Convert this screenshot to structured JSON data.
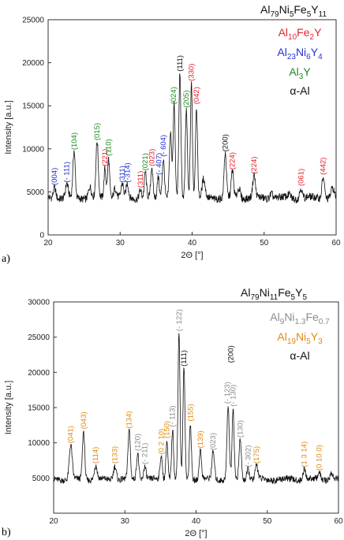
{
  "colors": {
    "red": "#e3232c",
    "blue": "#2433d6",
    "green": "#1f8a1f",
    "black": "#111111",
    "gray": "#8c8c8c",
    "orange": "#e08a16"
  },
  "chart_data": [
    {
      "type": "line",
      "panel_label": "a)",
      "title": "Al79Ni5Fe5Y11",
      "title_parts": [
        {
          "t": "Al"
        },
        {
          "t": "79",
          "sub": true
        },
        {
          "t": "Ni"
        },
        {
          "t": "5",
          "sub": true
        },
        {
          "t": "Fe"
        },
        {
          "t": "5",
          "sub": true
        },
        {
          "t": "Y"
        },
        {
          "t": "11",
          "sub": true
        }
      ],
      "xlabel": "2Θ [°]",
      "ylabel": "Intensity [a.u.]",
      "xlim": [
        20,
        60
      ],
      "ylim": [
        0,
        25000
      ],
      "xticks": [
        20,
        30,
        40,
        50,
        60
      ],
      "yticks": [
        0,
        5000,
        10000,
        15000,
        20000,
        25000
      ],
      "legend": [
        {
          "parts": [
            {
              "t": "Al"
            },
            {
              "t": "10",
              "sub": true
            },
            {
              "t": "Fe"
            },
            {
              "t": "2",
              "sub": true
            },
            {
              "t": "Y"
            }
          ],
          "color": "red"
        },
        {
          "parts": [
            {
              "t": "Al"
            },
            {
              "t": "23",
              "sub": true
            },
            {
              "t": "Ni"
            },
            {
              "t": "6",
              "sub": true
            },
            {
              "t": "Y"
            },
            {
              "t": "4",
              "sub": true
            }
          ],
          "color": "blue"
        },
        {
          "parts": [
            {
              "t": "Al"
            },
            {
              "t": "3",
              "sub": true
            },
            {
              "t": "Y"
            }
          ],
          "color": "green"
        },
        {
          "parts": [
            {
              "t": "α-Al"
            }
          ],
          "color": "black"
        }
      ],
      "background": 4300,
      "peaks": [
        {
          "x": 20.9,
          "y": 5600,
          "w": 0.18
        },
        {
          "x": 22.6,
          "y": 5900,
          "w": 0.18
        },
        {
          "x": 23.6,
          "y": 9700,
          "w": 0.16
        },
        {
          "x": 25.8,
          "y": 5600,
          "w": 0.2
        },
        {
          "x": 26.8,
          "y": 10800,
          "w": 0.16
        },
        {
          "x": 27.9,
          "y": 7800,
          "w": 0.14
        },
        {
          "x": 28.4,
          "y": 9000,
          "w": 0.14
        },
        {
          "x": 29.3,
          "y": 5500,
          "w": 0.2
        },
        {
          "x": 30.3,
          "y": 5900,
          "w": 0.16
        },
        {
          "x": 31.0,
          "y": 5900,
          "w": 0.16
        },
        {
          "x": 32.8,
          "y": 5300,
          "w": 0.16
        },
        {
          "x": 33.5,
          "y": 7300,
          "w": 0.14
        },
        {
          "x": 34.4,
          "y": 7800,
          "w": 0.14
        },
        {
          "x": 35.3,
          "y": 6800,
          "w": 0.14
        },
        {
          "x": 36.0,
          "y": 8900,
          "w": 0.16
        },
        {
          "x": 37.0,
          "y": 11800,
          "w": 0.16
        },
        {
          "x": 37.5,
          "y": 15000,
          "w": 0.14
        },
        {
          "x": 38.3,
          "y": 18800,
          "w": 0.14
        },
        {
          "x": 39.2,
          "y": 14600,
          "w": 0.14
        },
        {
          "x": 39.9,
          "y": 17700,
          "w": 0.14
        },
        {
          "x": 40.6,
          "y": 15000,
          "w": 0.14
        },
        {
          "x": 41.6,
          "y": 6400,
          "w": 0.2
        },
        {
          "x": 44.6,
          "y": 9500,
          "w": 0.16
        },
        {
          "x": 45.6,
          "y": 7400,
          "w": 0.16
        },
        {
          "x": 46.5,
          "y": 5500,
          "w": 0.2
        },
        {
          "x": 48.6,
          "y": 6900,
          "w": 0.18
        },
        {
          "x": 51.0,
          "y": 4900,
          "w": 0.2
        },
        {
          "x": 53.5,
          "y": 4700,
          "w": 0.2
        },
        {
          "x": 55.1,
          "y": 5500,
          "w": 0.18
        },
        {
          "x": 58.2,
          "y": 6800,
          "w": 0.18
        },
        {
          "x": 59.5,
          "y": 5400,
          "w": 0.2
        }
      ],
      "annotations": [
        {
          "text": "(004)",
          "x": 20.9,
          "y": 5500,
          "color": "blue"
        },
        {
          "text": "(- 111)",
          "x": 22.6,
          "y": 5800,
          "color": "blue"
        },
        {
          "text": "(104)",
          "x": 23.6,
          "y": 9600,
          "color": "green"
        },
        {
          "text": "(015)",
          "x": 26.8,
          "y": 10700,
          "color": "green"
        },
        {
          "text": "(221)",
          "x": 27.9,
          "y": 7700,
          "color": "red"
        },
        {
          "text": "(110)",
          "x": 28.4,
          "y": 8900,
          "color": "green"
        },
        {
          "text": "(311)",
          "x": 30.3,
          "y": 5800,
          "color": "blue"
        },
        {
          "text": "(-314)",
          "x": 31.0,
          "y": 5800,
          "color": "blue"
        },
        {
          "text": "(311)",
          "x": 32.8,
          "y": 5200,
          "color": "red"
        },
        {
          "text": "(021)",
          "x": 33.5,
          "y": 7200,
          "color": "green"
        },
        {
          "text": "(023)",
          "x": 34.4,
          "y": 7700,
          "color": "red"
        },
        {
          "text": "(- 407)",
          "x": 35.4,
          "y": 6700,
          "color": "blue"
        },
        {
          "text": "(- 604)",
          "x": 36.0,
          "y": 8800,
          "color": "blue"
        },
        {
          "text": "(024)",
          "x": 37.4,
          "y": 14900,
          "color": "green"
        },
        {
          "text": "(111)",
          "x": 38.3,
          "y": 18700,
          "color": "black"
        },
        {
          "text": "(205)",
          "x": 39.2,
          "y": 14500,
          "color": "green"
        },
        {
          "text": "(330)",
          "x": 39.9,
          "y": 17600,
          "color": "red"
        },
        {
          "text": "(042)",
          "x": 40.6,
          "y": 14900,
          "color": "red"
        },
        {
          "text": "(200)",
          "x": 44.6,
          "y": 9400,
          "color": "black"
        },
        {
          "text": "(224)",
          "x": 45.6,
          "y": 7300,
          "color": "red"
        },
        {
          "text": "(224)",
          "x": 48.6,
          "y": 6800,
          "color": "red"
        },
        {
          "text": "(061)",
          "x": 55.1,
          "y": 5400,
          "color": "red"
        },
        {
          "text": "(442)",
          "x": 58.2,
          "y": 6700,
          "color": "red"
        }
      ]
    },
    {
      "type": "line",
      "panel_label": "b)",
      "title": "Al79Ni11Fe5Y5",
      "title_parts": [
        {
          "t": "Al"
        },
        {
          "t": "79",
          "sub": true
        },
        {
          "t": "Ni"
        },
        {
          "t": "11",
          "sub": true
        },
        {
          "t": "Fe"
        },
        {
          "t": "5",
          "sub": true
        },
        {
          "t": "Y"
        },
        {
          "t": "5",
          "sub": true
        }
      ],
      "xlabel": "2Θ [°]",
      "ylabel": "Intensity [a.u.]",
      "xlim": [
        20,
        60
      ],
      "ylim": [
        0,
        30000
      ],
      "xticks": [
        20,
        30,
        40,
        50,
        60
      ],
      "yticks": [
        5000,
        10000,
        15000,
        20000,
        25000,
        30000
      ],
      "legend": [
        {
          "parts": [
            {
              "t": "Al"
            },
            {
              "t": "9",
              "sub": true
            },
            {
              "t": "Ni"
            },
            {
              "t": "1.3",
              "sub": true
            },
            {
              "t": "Fe"
            },
            {
              "t": "0.7",
              "sub": true
            }
          ],
          "color": "gray"
        },
        {
          "parts": [
            {
              "t": "Al"
            },
            {
              "t": "19",
              "sub": true
            },
            {
              "t": "Ni"
            },
            {
              "t": "5",
              "sub": true
            },
            {
              "t": "Y"
            },
            {
              "t": "3",
              "sub": true
            }
          ],
          "color": "orange"
        },
        {
          "parts": [
            {
              "t": "α-Al"
            }
          ],
          "color": "black"
        }
      ],
      "background": 4800,
      "peaks": [
        {
          "x": 22.4,
          "y": 9700,
          "w": 0.2
        },
        {
          "x": 24.2,
          "y": 11700,
          "w": 0.16
        },
        {
          "x": 25.9,
          "y": 6800,
          "w": 0.2
        },
        {
          "x": 28.6,
          "y": 6800,
          "w": 0.2
        },
        {
          "x": 30.6,
          "y": 11800,
          "w": 0.16
        },
        {
          "x": 31.8,
          "y": 8600,
          "w": 0.16
        },
        {
          "x": 32.8,
          "y": 6700,
          "w": 0.18
        },
        {
          "x": 35.1,
          "y": 8100,
          "w": 0.16
        },
        {
          "x": 35.9,
          "y": 10400,
          "w": 0.14
        },
        {
          "x": 36.7,
          "y": 12000,
          "w": 0.14
        },
        {
          "x": 37.6,
          "y": 25600,
          "w": 0.14
        },
        {
          "x": 38.3,
          "y": 20600,
          "w": 0.14
        },
        {
          "x": 39.2,
          "y": 12800,
          "w": 0.14
        },
        {
          "x": 40.6,
          "y": 9000,
          "w": 0.16
        },
        {
          "x": 42.4,
          "y": 8700,
          "w": 0.18
        },
        {
          "x": 44.5,
          "y": 15300,
          "w": 0.16
        },
        {
          "x": 45.2,
          "y": 14900,
          "w": 0.14
        },
        {
          "x": 46.2,
          "y": 10500,
          "w": 0.16
        },
        {
          "x": 47.3,
          "y": 6300,
          "w": 0.18
        },
        {
          "x": 48.5,
          "y": 6800,
          "w": 0.18
        },
        {
          "x": 55.2,
          "y": 6300,
          "w": 0.18
        },
        {
          "x": 57.3,
          "y": 5800,
          "w": 0.18
        },
        {
          "x": 59.0,
          "y": 5700,
          "w": 0.2
        }
      ],
      "annotations": [
        {
          "text": "(041)",
          "x": 22.4,
          "y": 9600,
          "color": "orange"
        },
        {
          "text": "(043)",
          "x": 24.2,
          "y": 11600,
          "color": "orange"
        },
        {
          "text": "(114)",
          "x": 25.9,
          "y": 6700,
          "color": "orange"
        },
        {
          "text": "(133)",
          "x": 28.6,
          "y": 6700,
          "color": "orange"
        },
        {
          "text": "(134)",
          "x": 30.6,
          "y": 11700,
          "color": "orange"
        },
        {
          "text": "(120)",
          "x": 31.8,
          "y": 8500,
          "color": "gray"
        },
        {
          "text": "(- 211)",
          "x": 32.8,
          "y": 6600,
          "color": "gray"
        },
        {
          "text": "(0 2 10)",
          "x": 35.1,
          "y": 8000,
          "color": "orange"
        },
        {
          "text": "(150)",
          "x": 35.9,
          "y": 10300,
          "color": "orange"
        },
        {
          "text": "(- 113)",
          "x": 36.7,
          "y": 11900,
          "color": "gray"
        },
        {
          "text": "(- 122)",
          "x": 37.6,
          "y": 25500,
          "color": "gray"
        },
        {
          "text": "(111)",
          "x": 38.3,
          "y": 20500,
          "color": "black"
        },
        {
          "text": "(155)",
          "x": 39.2,
          "y": 12700,
          "color": "orange"
        },
        {
          "text": "(139)",
          "x": 40.6,
          "y": 8900,
          "color": "orange"
        },
        {
          "text": "(023)",
          "x": 42.4,
          "y": 8600,
          "color": "gray"
        },
        {
          "text": "(- 123)",
          "x": 44.4,
          "y": 15200,
          "color": "gray"
        },
        {
          "text": "(200)",
          "x": 44.9,
          "y": 21000,
          "color": "black"
        },
        {
          "text": "(- 130)",
          "x": 45.2,
          "y": 14800,
          "color": "gray"
        },
        {
          "text": "(130)",
          "x": 46.2,
          "y": 10400,
          "color": "gray"
        },
        {
          "text": "(- 302)",
          "x": 47.3,
          "y": 6200,
          "color": "gray"
        },
        {
          "text": "(175)",
          "x": 48.5,
          "y": 6700,
          "color": "orange"
        },
        {
          "text": "(1 3 14)",
          "x": 55.2,
          "y": 6200,
          "color": "orange"
        },
        {
          "text": "(0 10 0)",
          "x": 57.3,
          "y": 5700,
          "color": "orange"
        }
      ]
    }
  ]
}
